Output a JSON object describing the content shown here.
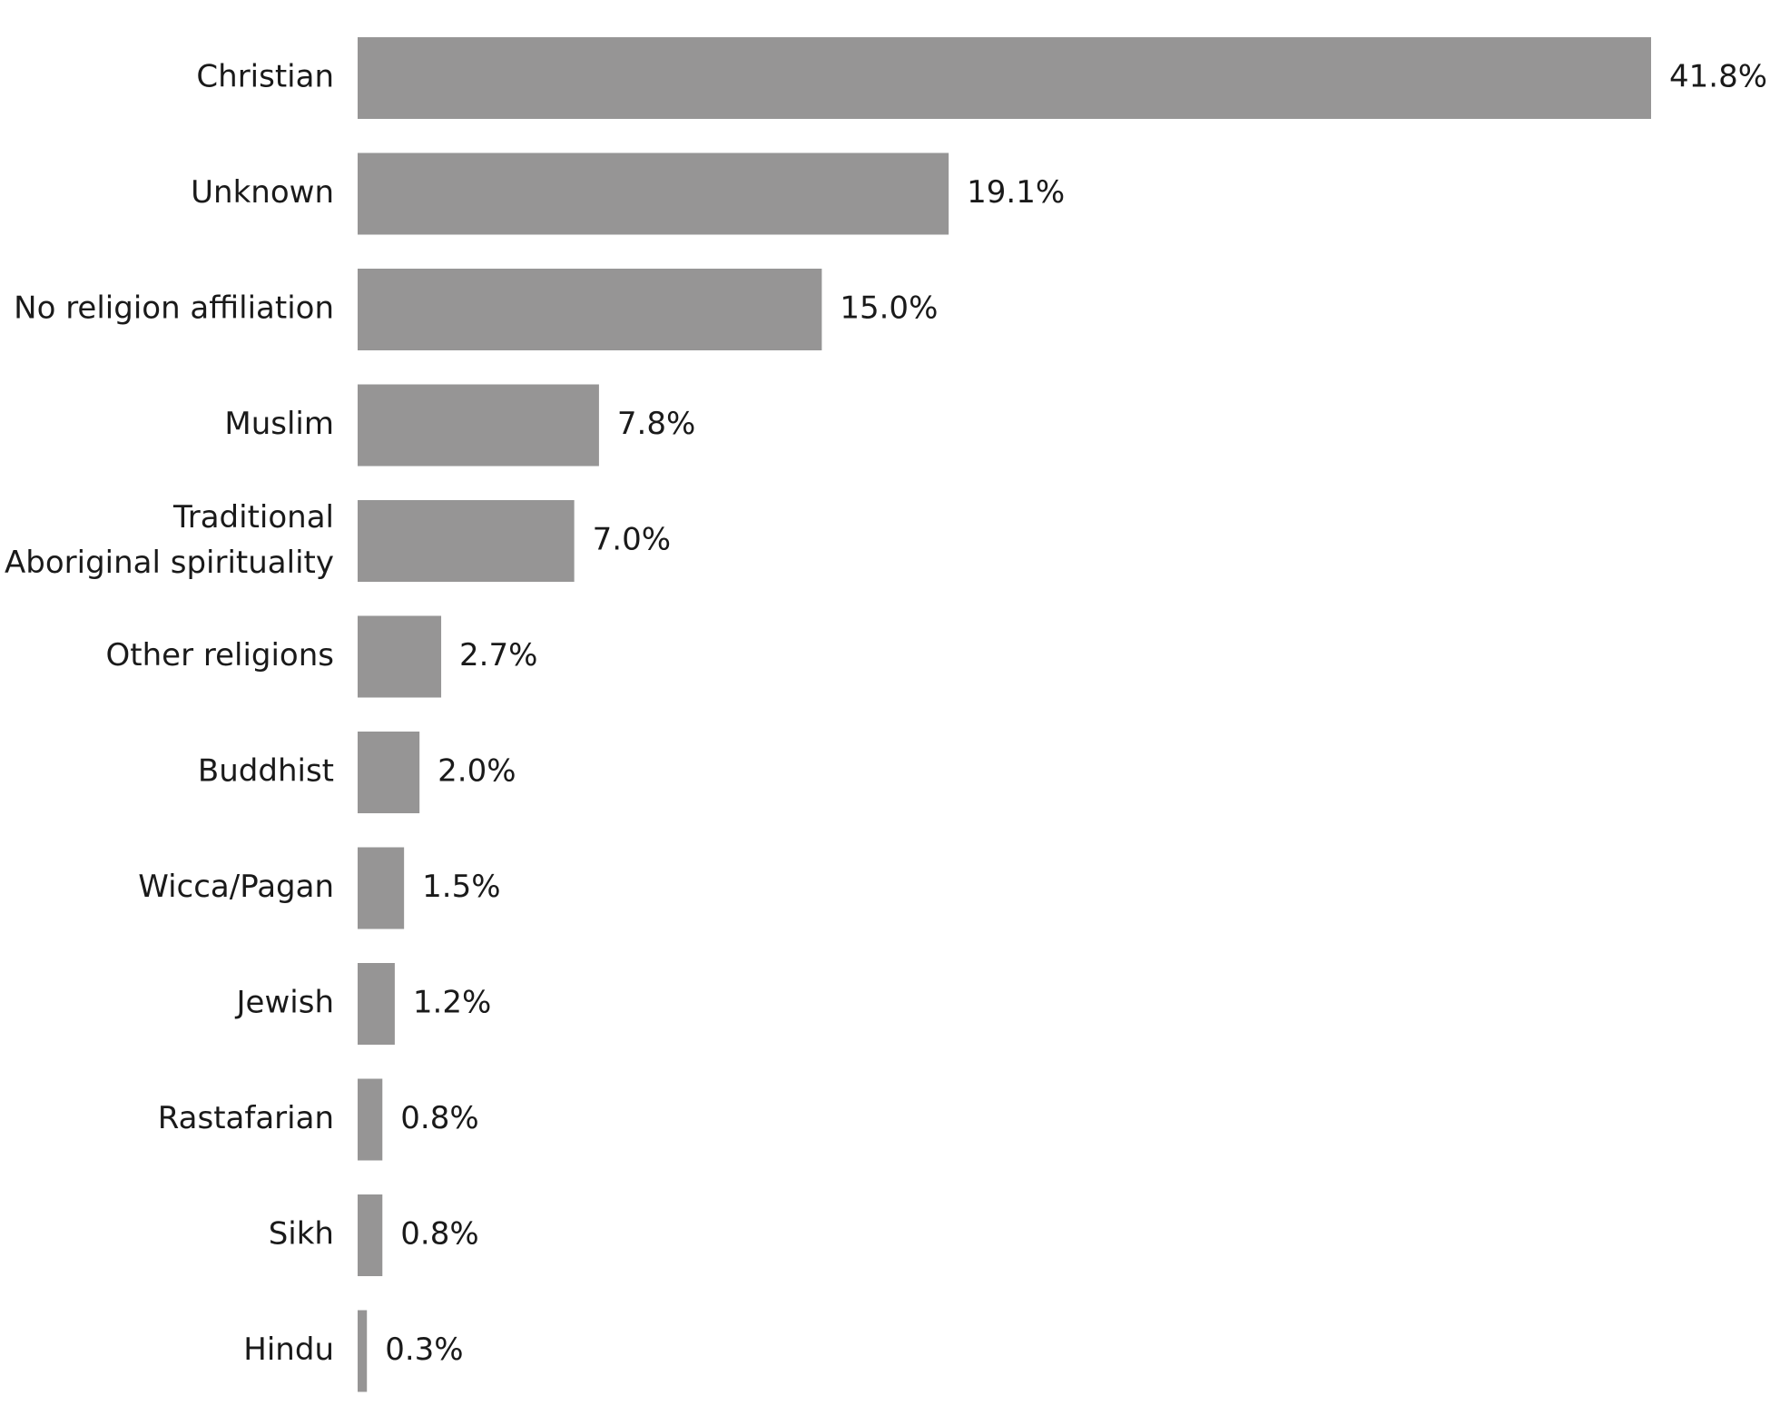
{
  "chart_data": {
    "type": "bar",
    "orientation": "horizontal",
    "categories": [
      "Christian",
      "Unknown",
      "No religion affiliation",
      "Muslim",
      "Traditional\nAboriginal spirituality",
      "Other religions",
      "Buddhist",
      "Wicca/Pagan",
      "Jewish",
      "Rastafarian",
      "Sikh",
      "Hindu"
    ],
    "values": [
      41.8,
      19.1,
      15.0,
      7.8,
      7.0,
      2.7,
      2.0,
      1.5,
      1.2,
      0.8,
      0.8,
      0.3
    ],
    "value_labels": [
      "41.8%",
      "19.1%",
      "15.0%",
      "7.8%",
      "7.0%",
      "2.7%",
      "2.0%",
      "1.5%",
      "1.2%",
      "0.8%",
      "0.8%",
      "0.3%"
    ],
    "color": "#969595"
  }
}
